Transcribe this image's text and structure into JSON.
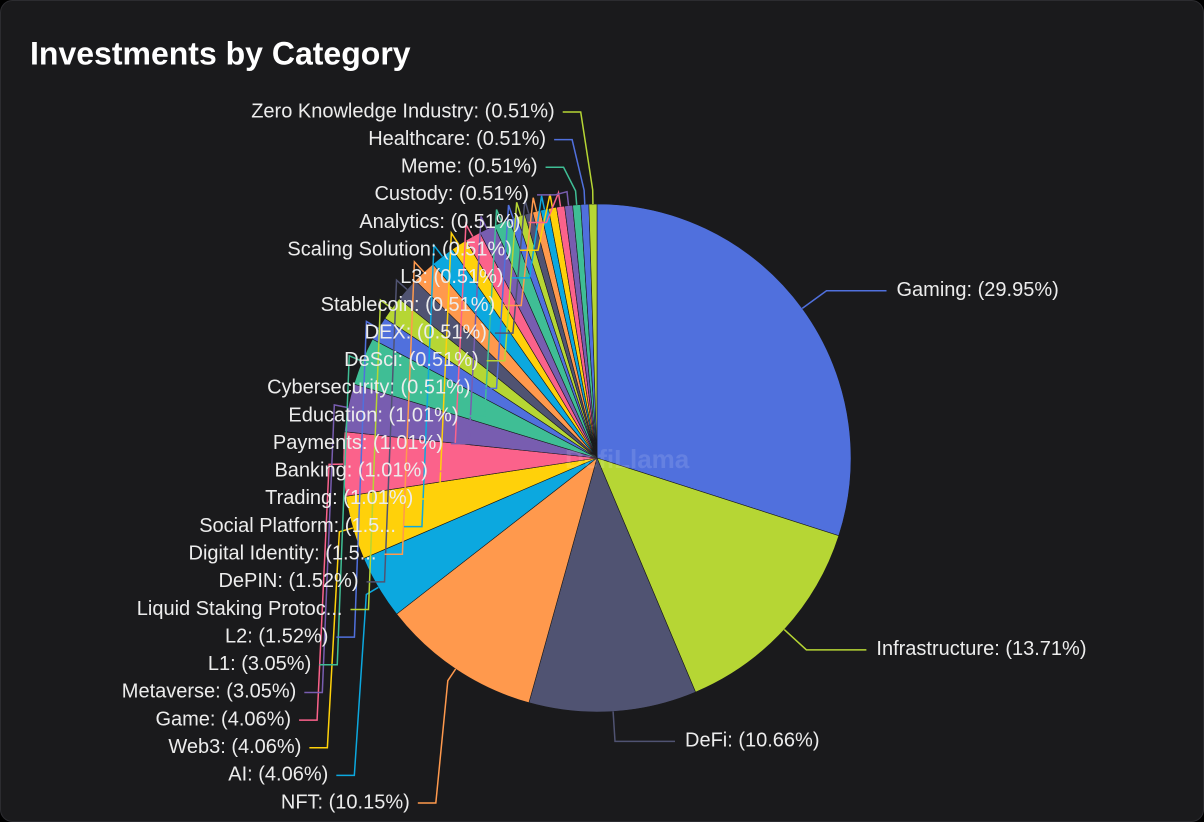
{
  "chart_data": {
    "type": "pie",
    "title": "Investments by Category",
    "watermark": "DefiLlama",
    "values": [
      29.95,
      13.71,
      10.66,
      10.15,
      4.06,
      4.06,
      4.06,
      3.05,
      3.05,
      1.52,
      1.52,
      1.52,
      1.52,
      1.52,
      1.01,
      1.01,
      1.01,
      1.01,
      0.51,
      0.51,
      0.51,
      0.51,
      0.51,
      0.51,
      0.51,
      0.51,
      0.51,
      0.51,
      0.51
    ],
    "value_labels": [
      "Gaming: (29.95%)",
      "Infrastructure: (13.71%)",
      "DeFi: (10.66%)",
      "NFT: (10.15%)",
      "AI: (4.06%)",
      "Web3: (4.06%)",
      "Game: (4.06%)",
      "Metaverse: (3.05%)",
      "L1: (3.05%)",
      "L2: (1.52%)",
      "Liquid Staking Protoc...",
      "DePIN: (1.52%)",
      "Digital Identity: (1.5...",
      "Social Platform: (1.5...",
      "Trading: (1.01%)",
      "Banking: (1.01%)",
      "Payments: (1.01%)",
      "Education: (1.01%)",
      "Cybersecurity: (0.51%)",
      "DeSci: (0.51%)",
      "DEX: (0.51%)",
      "Stablecoin: (0.51%)",
      "L3: (0.51%)",
      "Scaling Solution: (0.51%)",
      "Analytics: (0.51%)",
      "Custody: (0.51%)",
      "Meme: (0.51%)",
      "Healthcare: (0.51%)",
      "Zero Knowledge Industry: (0.51%)"
    ],
    "colors": [
      "#5070dd",
      "#b6d634",
      "#505372",
      "#ff994d",
      "#0ca8df",
      "#ffd10a",
      "#fb628b",
      "#785db0",
      "#3fbe95",
      "#5070dd",
      "#b6d634",
      "#505372",
      "#ff994d",
      "#0ca8df",
      "#ffd10a",
      "#fb628b",
      "#785db0",
      "#3fbe95",
      "#5070dd",
      "#b6d634",
      "#505372",
      "#ff994d",
      "#0ca8df",
      "#ffd10a",
      "#fb628b",
      "#785db0",
      "#3fbe95",
      "#5070dd",
      "#b6d634"
    ]
  }
}
